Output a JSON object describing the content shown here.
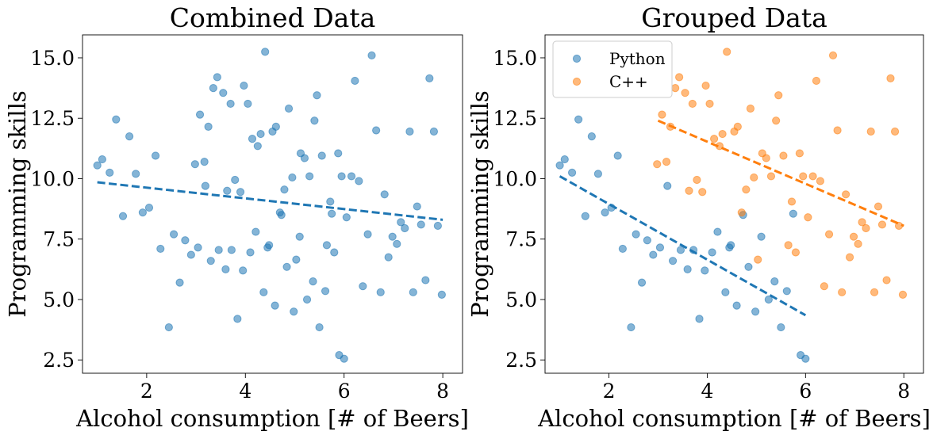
{
  "chart_data": [
    {
      "type": "scatter",
      "title": "Combined Data",
      "xlabel": "Alcohol consumption [# of Beers]",
      "ylabel": "Programming skills",
      "xlim": [
        0.7,
        8.4
      ],
      "ylim": [
        1.95,
        15.95
      ],
      "xticks": [
        2,
        4,
        6,
        8
      ],
      "yticks": [
        2.5,
        5.0,
        7.5,
        10.0,
        12.5,
        15.0
      ],
      "xtick_labels": [
        "2",
        "4",
        "6",
        "8"
      ],
      "ytick_labels": [
        "2.5",
        "5.0",
        "7.5",
        "10.0",
        "12.5",
        "15.0"
      ],
      "grid": false,
      "legend": null,
      "series": [
        {
          "color": "#1f77b4",
          "points": [
            [
              1.0,
              10.55
            ],
            [
              1.1,
              10.8
            ],
            [
              1.25,
              10.25
            ],
            [
              1.38,
              12.45
            ],
            [
              1.52,
              8.45
            ],
            [
              1.65,
              11.75
            ],
            [
              1.78,
              10.2
            ],
            [
              1.92,
              8.6
            ],
            [
              2.05,
              8.8
            ],
            [
              2.18,
              10.95
            ],
            [
              2.28,
              7.1
            ],
            [
              2.45,
              3.85
            ],
            [
              2.55,
              7.7
            ],
            [
              2.67,
              5.7
            ],
            [
              2.78,
              7.45
            ],
            [
              2.9,
              6.85
            ],
            [
              2.98,
              10.6
            ],
            [
              3.04,
              7.15
            ],
            [
              3.08,
              12.65
            ],
            [
              3.17,
              10.7
            ],
            [
              3.19,
              9.7
            ],
            [
              3.25,
              12.15
            ],
            [
              3.3,
              6.6
            ],
            [
              3.35,
              13.75
            ],
            [
              3.43,
              14.2
            ],
            [
              3.46,
              7.05
            ],
            [
              3.55,
              13.55
            ],
            [
              3.6,
              6.25
            ],
            [
              3.63,
              9.5
            ],
            [
              3.7,
              13.1
            ],
            [
              3.72,
              7.05
            ],
            [
              3.79,
              9.95
            ],
            [
              3.84,
              4.2
            ],
            [
              3.9,
              9.45
            ],
            [
              3.95,
              6.2
            ],
            [
              3.97,
              13.85
            ],
            [
              4.05,
              13.1
            ],
            [
              4.1,
              6.95
            ],
            [
              4.14,
              11.65
            ],
            [
              4.21,
              7.8
            ],
            [
              4.25,
              11.35
            ],
            [
              4.31,
              11.85
            ],
            [
              4.37,
              5.3
            ],
            [
              4.4,
              15.25
            ],
            [
              4.45,
              7.15
            ],
            [
              4.48,
              7.25
            ],
            [
              4.55,
              11.95
            ],
            [
              4.6,
              4.75
            ],
            [
              4.62,
              12.15
            ],
            [
              4.7,
              8.6
            ],
            [
              4.73,
              8.5
            ],
            [
              4.79,
              9.55
            ],
            [
              4.84,
              6.35
            ],
            [
              4.88,
              12.9
            ],
            [
              4.95,
              10.05
            ],
            [
              4.98,
              4.5
            ],
            [
              5.03,
              6.65
            ],
            [
              5.1,
              7.6
            ],
            [
              5.12,
              11.05
            ],
            [
              5.2,
              10.85
            ],
            [
              5.25,
              5.0
            ],
            [
              5.3,
              10.1
            ],
            [
              5.37,
              5.75
            ],
            [
              5.4,
              12.4
            ],
            [
              5.45,
              13.45
            ],
            [
              5.5,
              3.85
            ],
            [
              5.55,
              10.95
            ],
            [
              5.62,
              5.35
            ],
            [
              5.65,
              7.25
            ],
            [
              5.72,
              9.05
            ],
            [
              5.75,
              8.55
            ],
            [
              5.8,
              6.95
            ],
            [
              5.88,
              11.05
            ],
            [
              5.9,
              2.7
            ],
            [
              5.95,
              10.1
            ],
            [
              6.0,
              2.55
            ],
            [
              6.05,
              8.4
            ],
            [
              6.15,
              10.1
            ],
            [
              6.22,
              14.05
            ],
            [
              6.3,
              9.9
            ],
            [
              6.38,
              5.55
            ],
            [
              6.48,
              7.7
            ],
            [
              6.56,
              15.1
            ],
            [
              6.65,
              12.0
            ],
            [
              6.74,
              5.3
            ],
            [
              6.82,
              9.35
            ],
            [
              6.9,
              6.75
            ],
            [
              6.98,
              7.6
            ],
            [
              7.07,
              7.3
            ],
            [
              7.15,
              8.2
            ],
            [
              7.23,
              7.95
            ],
            [
              7.33,
              11.95
            ],
            [
              7.4,
              5.3
            ],
            [
              7.48,
              8.85
            ],
            [
              7.56,
              8.1
            ],
            [
              7.65,
              5.8
            ],
            [
              7.73,
              14.15
            ],
            [
              7.82,
              11.95
            ],
            [
              7.9,
              8.05
            ],
            [
              7.98,
              5.2
            ]
          ]
        }
      ],
      "fit_lines": [
        {
          "color": "#1f77b4",
          "x": [
            1.0,
            8.0
          ],
          "y": [
            9.85,
            8.3
          ]
        }
      ]
    },
    {
      "type": "scatter",
      "title": "Grouped Data",
      "xlabel": "Alcohol consumption [# of Beers]",
      "ylabel": "Programming skills",
      "xlim": [
        0.7,
        8.4
      ],
      "ylim": [
        1.95,
        15.95
      ],
      "xticks": [
        2,
        4,
        6,
        8
      ],
      "yticks": [
        2.5,
        5.0,
        7.5,
        10.0,
        12.5,
        15.0
      ],
      "xtick_labels": [
        "2",
        "4",
        "6",
        "8"
      ],
      "ytick_labels": [
        "2.5",
        "5.0",
        "7.5",
        "10.0",
        "12.5",
        "15.0"
      ],
      "grid": false,
      "legend": "top-left",
      "series": [
        {
          "name": "Python",
          "color": "#1f77b4",
          "points": [
            [
              1.0,
              10.55
            ],
            [
              1.1,
              10.8
            ],
            [
              1.25,
              10.25
            ],
            [
              1.38,
              12.45
            ],
            [
              1.52,
              8.45
            ],
            [
              1.65,
              11.75
            ],
            [
              1.78,
              10.2
            ],
            [
              1.92,
              8.6
            ],
            [
              2.05,
              8.8
            ],
            [
              2.18,
              10.95
            ],
            [
              2.28,
              7.1
            ],
            [
              2.45,
              3.85
            ],
            [
              2.55,
              7.7
            ],
            [
              2.67,
              5.7
            ],
            [
              2.78,
              7.45
            ],
            [
              2.9,
              6.85
            ],
            [
              3.04,
              7.15
            ],
            [
              3.19,
              9.7
            ],
            [
              3.3,
              6.6
            ],
            [
              3.46,
              7.05
            ],
            [
              3.6,
              6.25
            ],
            [
              3.72,
              7.05
            ],
            [
              3.84,
              4.2
            ],
            [
              3.95,
              6.2
            ],
            [
              4.1,
              6.95
            ],
            [
              4.21,
              7.8
            ],
            [
              4.37,
              5.3
            ],
            [
              4.45,
              7.15
            ],
            [
              4.48,
              7.25
            ],
            [
              4.6,
              4.75
            ],
            [
              4.73,
              8.5
            ],
            [
              4.84,
              6.35
            ],
            [
              4.98,
              4.5
            ],
            [
              5.1,
              7.6
            ],
            [
              5.25,
              5.0
            ],
            [
              5.37,
              5.75
            ],
            [
              5.5,
              3.85
            ],
            [
              5.62,
              5.35
            ],
            [
              5.75,
              8.55
            ],
            [
              5.9,
              2.7
            ],
            [
              6.0,
              2.55
            ]
          ]
        },
        {
          "name": "C++",
          "color": "#ff7f0e",
          "points": [
            [
              2.98,
              10.6
            ],
            [
              3.08,
              12.65
            ],
            [
              3.17,
              10.7
            ],
            [
              3.25,
              12.15
            ],
            [
              3.35,
              13.75
            ],
            [
              3.43,
              14.2
            ],
            [
              3.55,
              13.55
            ],
            [
              3.63,
              9.5
            ],
            [
              3.7,
              13.1
            ],
            [
              3.79,
              9.95
            ],
            [
              3.9,
              9.45
            ],
            [
              3.97,
              13.85
            ],
            [
              4.05,
              13.1
            ],
            [
              4.14,
              11.65
            ],
            [
              4.25,
              11.35
            ],
            [
              4.31,
              11.85
            ],
            [
              4.4,
              15.25
            ],
            [
              4.55,
              11.95
            ],
            [
              4.62,
              12.15
            ],
            [
              4.7,
              8.6
            ],
            [
              4.79,
              9.55
            ],
            [
              4.88,
              12.9
            ],
            [
              4.95,
              10.05
            ],
            [
              5.03,
              6.65
            ],
            [
              5.12,
              11.05
            ],
            [
              5.2,
              10.85
            ],
            [
              5.3,
              10.1
            ],
            [
              5.4,
              12.4
            ],
            [
              5.45,
              13.45
            ],
            [
              5.55,
              10.95
            ],
            [
              5.65,
              7.25
            ],
            [
              5.72,
              9.05
            ],
            [
              5.8,
              6.95
            ],
            [
              5.88,
              11.05
            ],
            [
              5.95,
              10.1
            ],
            [
              6.05,
              8.4
            ],
            [
              6.15,
              10.1
            ],
            [
              6.22,
              14.05
            ],
            [
              6.3,
              9.9
            ],
            [
              6.38,
              5.55
            ],
            [
              6.48,
              7.7
            ],
            [
              6.56,
              15.1
            ],
            [
              6.65,
              12.0
            ],
            [
              6.74,
              5.3
            ],
            [
              6.82,
              9.35
            ],
            [
              6.9,
              6.75
            ],
            [
              6.98,
              7.6
            ],
            [
              7.07,
              7.3
            ],
            [
              7.15,
              8.2
            ],
            [
              7.23,
              7.95
            ],
            [
              7.33,
              11.95
            ],
            [
              7.4,
              5.3
            ],
            [
              7.48,
              8.85
            ],
            [
              7.56,
              8.1
            ],
            [
              7.65,
              5.8
            ],
            [
              7.73,
              14.15
            ],
            [
              7.82,
              11.95
            ],
            [
              7.9,
              8.05
            ],
            [
              7.98,
              5.2
            ]
          ]
        }
      ],
      "fit_lines": [
        {
          "color": "#1f77b4",
          "x": [
            1.0,
            6.0
          ],
          "y": [
            10.1,
            4.35
          ]
        },
        {
          "color": "#ff7f0e",
          "x": [
            3.0,
            8.0
          ],
          "y": [
            12.4,
            8.05
          ]
        }
      ]
    }
  ]
}
